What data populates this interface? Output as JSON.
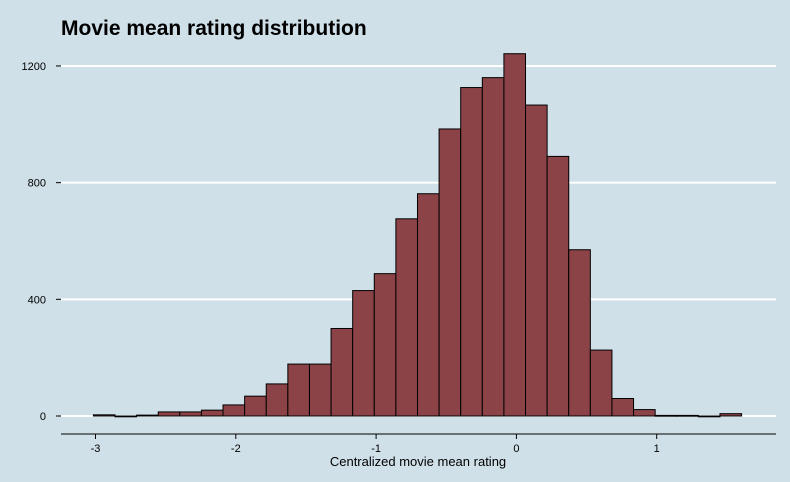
{
  "chart_data": {
    "type": "bar",
    "title": "Movie mean rating distribution",
    "xlabel": "Centralized movie mean rating",
    "ylabel": "",
    "xlim": [
      -3.25,
      1.85
    ],
    "ylim": [
      0,
      1260
    ],
    "x_ticks": [
      -3,
      -2,
      -1,
      0,
      1
    ],
    "y_ticks": [
      0,
      400,
      800,
      1200
    ],
    "bin_width": 0.154,
    "bins": [
      {
        "center": -2.938,
        "count": 4
      },
      {
        "center": -2.784,
        "count": 0
      },
      {
        "center": -2.63,
        "count": 3
      },
      {
        "center": -2.476,
        "count": 14
      },
      {
        "center": -2.322,
        "count": 14
      },
      {
        "center": -2.168,
        "count": 20
      },
      {
        "center": -2.014,
        "count": 38
      },
      {
        "center": -1.86,
        "count": 68
      },
      {
        "center": -1.706,
        "count": 110
      },
      {
        "center": -1.552,
        "count": 178
      },
      {
        "center": -1.398,
        "count": 178
      },
      {
        "center": -1.244,
        "count": 300
      },
      {
        "center": -1.09,
        "count": 430
      },
      {
        "center": -0.936,
        "count": 488
      },
      {
        "center": -0.782,
        "count": 676
      },
      {
        "center": -0.628,
        "count": 762
      },
      {
        "center": -0.474,
        "count": 984
      },
      {
        "center": -0.32,
        "count": 1126
      },
      {
        "center": -0.166,
        "count": 1160
      },
      {
        "center": -0.012,
        "count": 1242
      },
      {
        "center": 0.142,
        "count": 1066
      },
      {
        "center": 0.296,
        "count": 890
      },
      {
        "center": 0.45,
        "count": 570
      },
      {
        "center": 0.604,
        "count": 226
      },
      {
        "center": 0.758,
        "count": 60
      },
      {
        "center": 0.912,
        "count": 22
      },
      {
        "center": 1.066,
        "count": 2
      },
      {
        "center": 1.22,
        "count": 2
      },
      {
        "center": 1.374,
        "count": 0
      },
      {
        "center": 1.528,
        "count": 8
      }
    ],
    "grid": {
      "horizontal": true,
      "vertical": false
    },
    "colors": {
      "background": "#cfe0e8",
      "bar_fill": "#8b4347",
      "bar_stroke": "#000000",
      "grid": "#ffffff"
    }
  }
}
